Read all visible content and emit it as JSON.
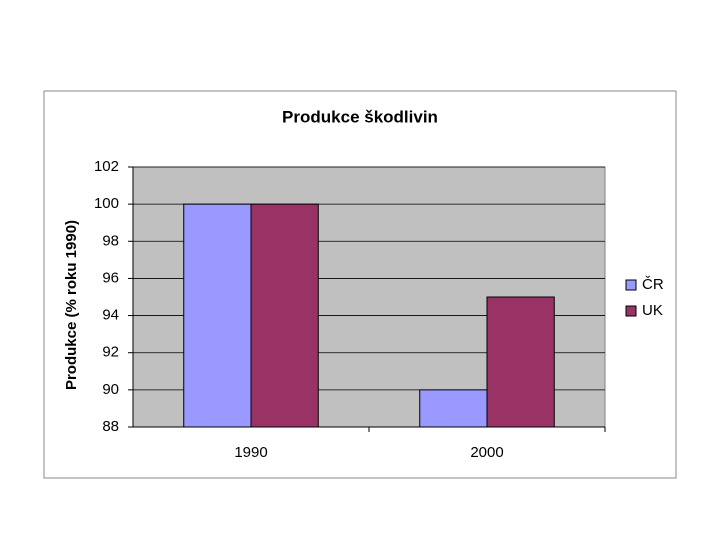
{
  "chart_data": {
    "type": "bar",
    "title": "Produkce škodlivin",
    "y_label": "Produkce (% roku 1990)",
    "categories": [
      "1990",
      "2000"
    ],
    "series": [
      {
        "name": "ČR",
        "color": "#9999ff",
        "values": [
          100,
          90
        ]
      },
      {
        "name": "UK",
        "color": "#993366",
        "values": [
          100,
          95
        ]
      }
    ],
    "ylim": [
      88,
      102
    ],
    "yticks": [
      88,
      90,
      92,
      94,
      96,
      98,
      100,
      102
    ],
    "grid": true,
    "legend": "right"
  }
}
